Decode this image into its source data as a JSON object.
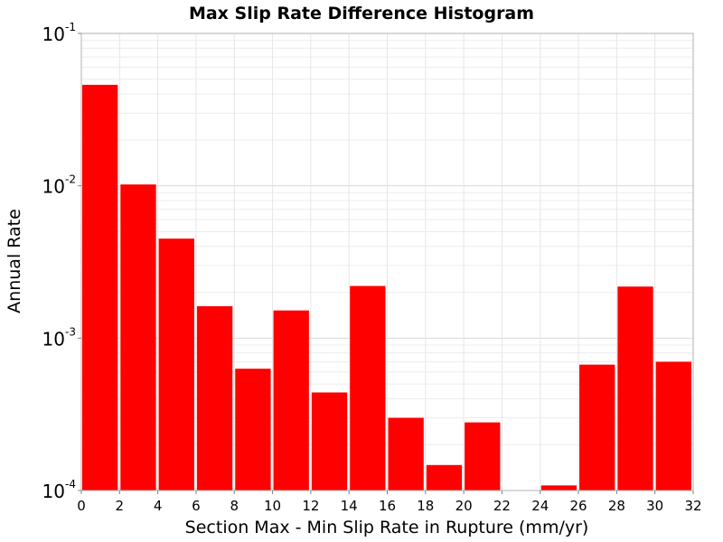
{
  "chart_data": {
    "type": "bar",
    "title": "Max Slip Rate Difference Histogram",
    "xlabel": "Section Max - Min Slip Rate in Rupture (mm/yr)",
    "ylabel": "Annual Rate",
    "y_scale": "log",
    "xlim": [
      0,
      32
    ],
    "ylim": [
      0.0001,
      0.1
    ],
    "bin_width": 2,
    "x_ticks": [
      "0",
      "2",
      "4",
      "6",
      "8",
      "10",
      "12",
      "14",
      "16",
      "18",
      "20",
      "22",
      "24",
      "26",
      "28",
      "30",
      "32"
    ],
    "y_ticks": [
      {
        "base": "10",
        "exp": "-4"
      },
      {
        "base": "10",
        "exp": "-3"
      },
      {
        "base": "10",
        "exp": "-2"
      },
      {
        "base": "10",
        "exp": "-1"
      }
    ],
    "grid": true,
    "bar_color": "#ff0000",
    "bins": [
      {
        "x_start": 0,
        "value": 0.046
      },
      {
        "x_start": 2,
        "value": 0.0102
      },
      {
        "x_start": 4,
        "value": 0.0045
      },
      {
        "x_start": 6,
        "value": 0.00162
      },
      {
        "x_start": 8,
        "value": 0.00063
      },
      {
        "x_start": 10,
        "value": 0.00152
      },
      {
        "x_start": 12,
        "value": 0.00044
      },
      {
        "x_start": 14,
        "value": 0.0022
      },
      {
        "x_start": 16,
        "value": 0.0003
      },
      {
        "x_start": 18,
        "value": 0.000147
      },
      {
        "x_start": 20,
        "value": 0.00028
      },
      {
        "x_start": 22,
        "value": 0
      },
      {
        "x_start": 24,
        "value": 0.000108
      },
      {
        "x_start": 26,
        "value": 0.00067
      },
      {
        "x_start": 28,
        "value": 0.00218
      },
      {
        "x_start": 30,
        "value": 0.0007
      }
    ]
  }
}
